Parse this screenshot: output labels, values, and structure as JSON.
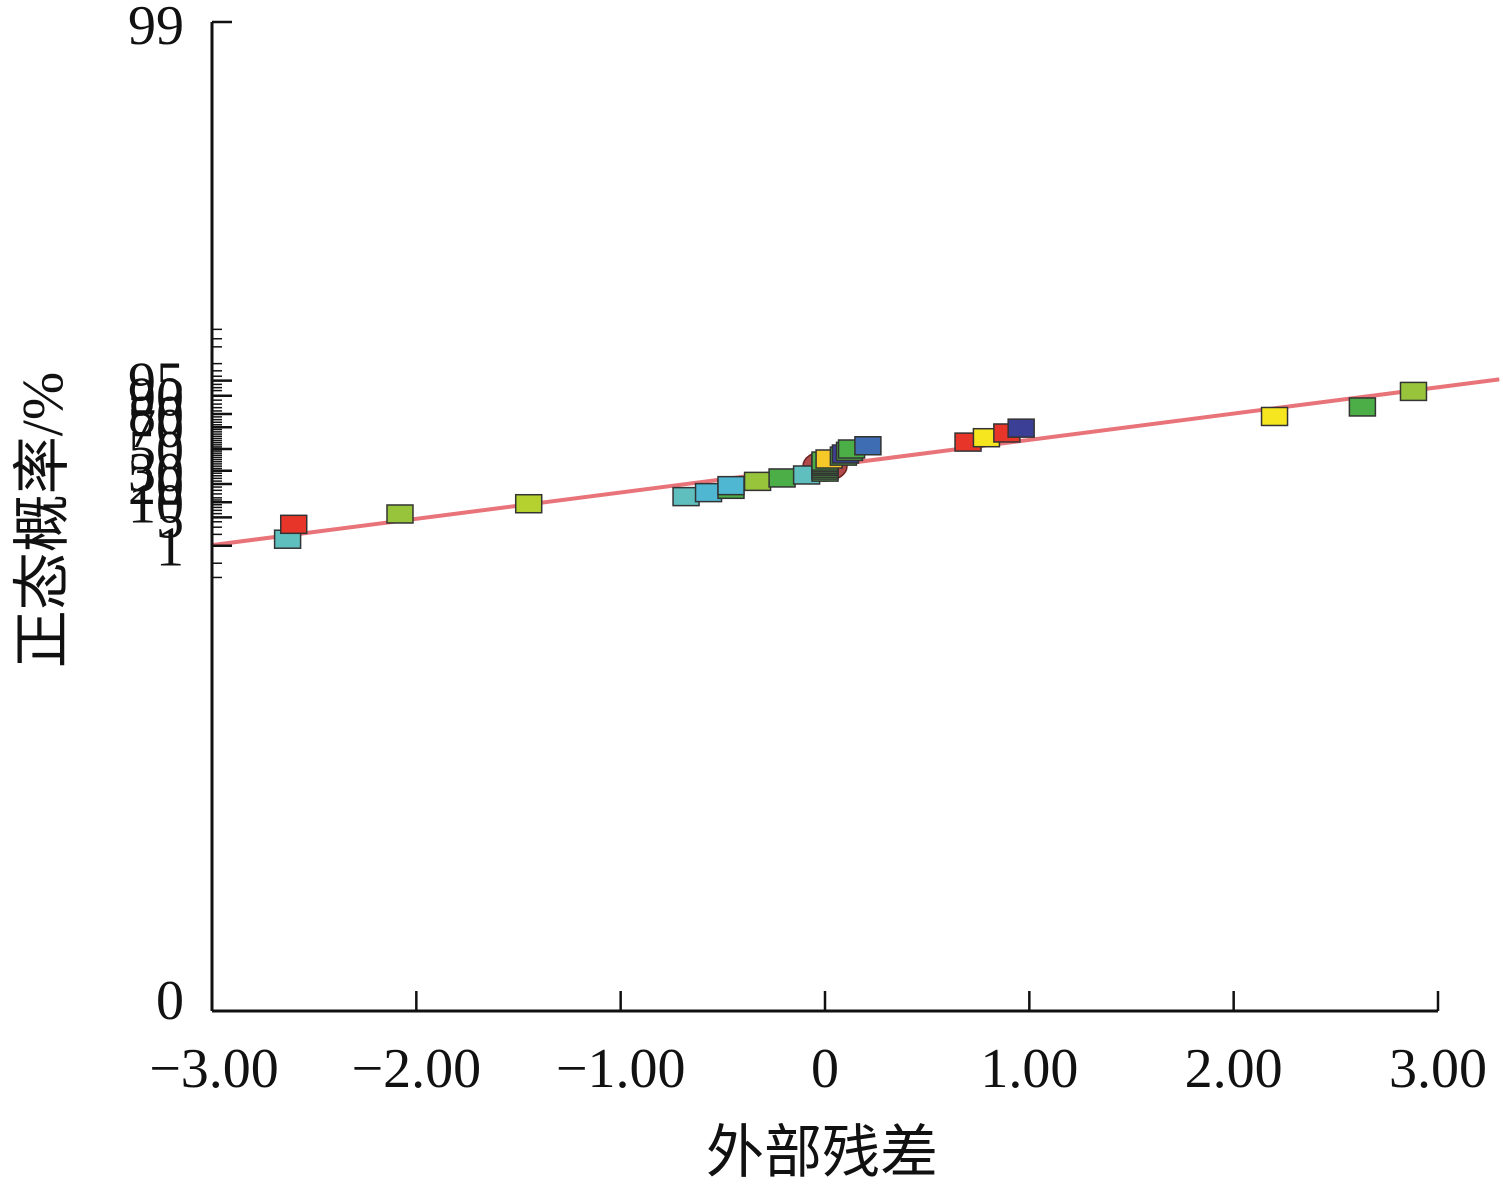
{
  "chart_data": {
    "type": "scatter",
    "title": "",
    "xlabel": "外部残差",
    "ylabel": "正态概率/%",
    "xlim": [
      -3.0,
      3.0
    ],
    "x_ticks": [
      -3,
      -2,
      -1,
      0,
      1,
      2,
      3
    ],
    "x_tick_labels": [
      "−3.00",
      "−2.00",
      "−1.00",
      "0",
      "1.00",
      "2.00",
      "3.00"
    ],
    "y_scale": "normal-probability",
    "y_ticks": [
      0,
      1,
      5,
      10,
      20,
      30,
      50,
      70,
      80,
      90,
      95,
      99
    ],
    "y_tick_labels": [
      "0",
      "1",
      "5",
      "10",
      "20",
      "30",
      "50",
      "70",
      "80",
      "90",
      "95",
      "99"
    ],
    "grid": false,
    "legend": "none",
    "fit_line": {
      "color": "#e8747a",
      "points": [
        [
          -3.0,
          1.04
        ],
        [
          3.3,
          95.3
        ]
      ]
    },
    "highlight": {
      "x": 0.0,
      "y": 34.0,
      "color": "#b24a4a"
    },
    "points": [
      {
        "x": -2.63,
        "y": 1.5,
        "color": "#5fbfbf"
      },
      {
        "x": -2.6,
        "y": 3.5,
        "color": "#e8352a"
      },
      {
        "x": -2.08,
        "y": 5.9,
        "color": "#97c43b"
      },
      {
        "x": -1.45,
        "y": 9.4,
        "color": "#b5d12f"
      },
      {
        "x": -0.68,
        "y": 12.6,
        "color": "#5fbfbf"
      },
      {
        "x": -0.57,
        "y": 14.7,
        "color": "#4fb7d2"
      },
      {
        "x": -0.46,
        "y": 16.6,
        "color": "#4cae46"
      },
      {
        "x": -0.46,
        "y": 18.9,
        "color": "#4fb7d2"
      },
      {
        "x": -0.33,
        "y": 21.8,
        "color": "#97c43b"
      },
      {
        "x": -0.21,
        "y": 24.3,
        "color": "#4cae46"
      },
      {
        "x": -0.09,
        "y": 26.6,
        "color": "#5fbfbf"
      },
      {
        "x": 0.0,
        "y": 28.9,
        "color": "#4cae46"
      },
      {
        "x": 0.0,
        "y": 30.6,
        "color": "#4cae46"
      },
      {
        "x": 0.0,
        "y": 32.2,
        "color": "#4cae46"
      },
      {
        "x": 0.0,
        "y": 33.9,
        "color": "#4cae46"
      },
      {
        "x": 0.0,
        "y": 35.4,
        "color": "#4cae46"
      },
      {
        "x": 0.0,
        "y": 37.0,
        "color": "#4cae46"
      },
      {
        "x": 0.0,
        "y": 38.6,
        "color": "#4cae46"
      },
      {
        "x": 0.02,
        "y": 40.5,
        "color": "#f6c928"
      },
      {
        "x": 0.09,
        "y": 43.2,
        "color": "#4cae46"
      },
      {
        "x": 0.1,
        "y": 45.2,
        "color": "#3c3f96"
      },
      {
        "x": 0.12,
        "y": 47.7,
        "color": "#4cae46"
      },
      {
        "x": 0.13,
        "y": 50.0,
        "color": "#4cae46"
      },
      {
        "x": 0.21,
        "y": 53.1,
        "color": "#3f6db3"
      },
      {
        "x": 0.7,
        "y": 56.6,
        "color": "#e8352a"
      },
      {
        "x": 0.79,
        "y": 60.7,
        "color": "#f6e61f"
      },
      {
        "x": 0.89,
        "y": 65.0,
        "color": "#e8352a"
      },
      {
        "x": 0.96,
        "y": 69.2,
        "color": "#3c3f96"
      },
      {
        "x": 2.2,
        "y": 78.3,
        "color": "#f6e61f"
      },
      {
        "x": 2.63,
        "y": 84.4,
        "color": "#4cae46"
      },
      {
        "x": 2.88,
        "y": 91.7,
        "color": "#97c43b"
      }
    ]
  }
}
